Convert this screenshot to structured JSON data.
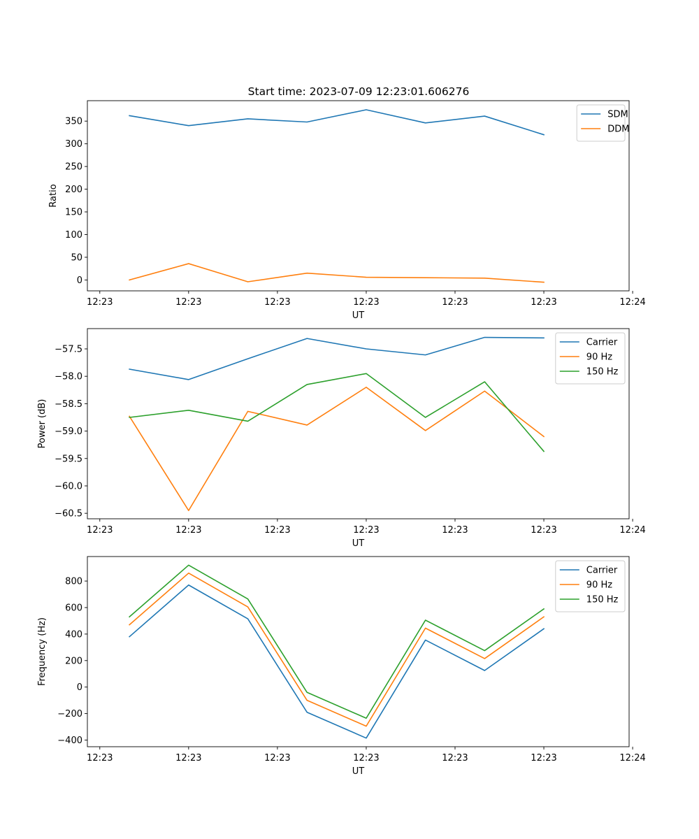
{
  "figure": {
    "title": "Start time: 2023-07-09 12:23:01.606276"
  },
  "chart_data": [
    {
      "type": "line",
      "title": "Start time: 2023-07-09 12:23:01.606276",
      "xlabel": "UT",
      "ylabel": "Ratio",
      "x_tick_labels": [
        "12:23",
        "12:23",
        "12:23",
        "12:23",
        "12:23",
        "12:23",
        "12:24"
      ],
      "x": [
        1,
        2,
        3,
        4,
        5,
        6,
        7,
        8
      ],
      "xlim": [
        0.29,
        9.44
      ],
      "x_ticks": [
        0.5,
        2.0,
        3.5,
        5.0,
        6.5,
        8.0,
        9.5
      ],
      "ylim": [
        -24,
        395
      ],
      "y_ticks": [
        0,
        50,
        100,
        150,
        200,
        250,
        300,
        350
      ],
      "legend_position": "top-right",
      "series": [
        {
          "name": "SDM",
          "color": "#1f77b4",
          "values": [
            362,
            340,
            355,
            348,
            375,
            346,
            361,
            320
          ]
        },
        {
          "name": "DDM",
          "color": "#ff7f0e",
          "values": [
            0,
            36,
            -4,
            15,
            6,
            5,
            4,
            -5
          ]
        }
      ]
    },
    {
      "type": "line",
      "title": "",
      "xlabel": "UT",
      "ylabel": "Power (dB)",
      "x_tick_labels": [
        "12:23",
        "12:23",
        "12:23",
        "12:23",
        "12:23",
        "12:23",
        "12:24"
      ],
      "x": [
        1,
        2,
        3,
        4,
        5,
        6,
        7,
        8
      ],
      "xlim": [
        0.29,
        9.44
      ],
      "x_ticks": [
        0.5,
        2.0,
        3.5,
        5.0,
        6.5,
        8.0,
        9.5
      ],
      "ylim": [
        -60.6,
        -57.13
      ],
      "y_ticks": [
        -60.5,
        -60.0,
        -59.5,
        -59.0,
        -58.5,
        -58.0,
        -57.5
      ],
      "legend_position": "top-right",
      "series": [
        {
          "name": "Carrier",
          "color": "#1f77b4",
          "values": [
            -57.87,
            -58.06,
            -57.68,
            -57.31,
            -57.5,
            -57.61,
            -57.29,
            -57.3
          ]
        },
        {
          "name": "90 Hz",
          "color": "#ff7f0e",
          "values": [
            -58.73,
            -60.45,
            -58.64,
            -58.89,
            -58.2,
            -58.99,
            -58.27,
            -59.1
          ]
        },
        {
          "name": "150 Hz",
          "color": "#2ca02c",
          "values": [
            -58.75,
            -58.62,
            -58.82,
            -58.15,
            -57.95,
            -58.75,
            -58.1,
            -59.37
          ]
        }
      ]
    },
    {
      "type": "line",
      "title": "",
      "xlabel": "UT",
      "ylabel": "Frequency (Hz)",
      "x_tick_labels": [
        "12:23",
        "12:23",
        "12:23",
        "12:23",
        "12:23",
        "12:23",
        "12:24"
      ],
      "x": [
        1,
        2,
        3,
        4,
        5,
        6,
        7,
        8
      ],
      "xlim": [
        0.29,
        9.44
      ],
      "x_ticks": [
        0.5,
        2.0,
        3.5,
        5.0,
        6.5,
        8.0,
        9.5
      ],
      "ylim": [
        -450,
        985
      ],
      "y_ticks": [
        -400,
        -200,
        0,
        200,
        400,
        600,
        800
      ],
      "legend_position": "top-right",
      "series": [
        {
          "name": "Carrier",
          "color": "#1f77b4",
          "values": [
            380,
            770,
            515,
            -190,
            -385,
            355,
            125,
            440
          ]
        },
        {
          "name": "90 Hz",
          "color": "#ff7f0e",
          "values": [
            470,
            860,
            605,
            -100,
            -295,
            445,
            215,
            530
          ]
        },
        {
          "name": "150 Hz",
          "color": "#2ca02c",
          "values": [
            530,
            920,
            665,
            -40,
            -235,
            505,
            275,
            590
          ]
        }
      ]
    }
  ]
}
